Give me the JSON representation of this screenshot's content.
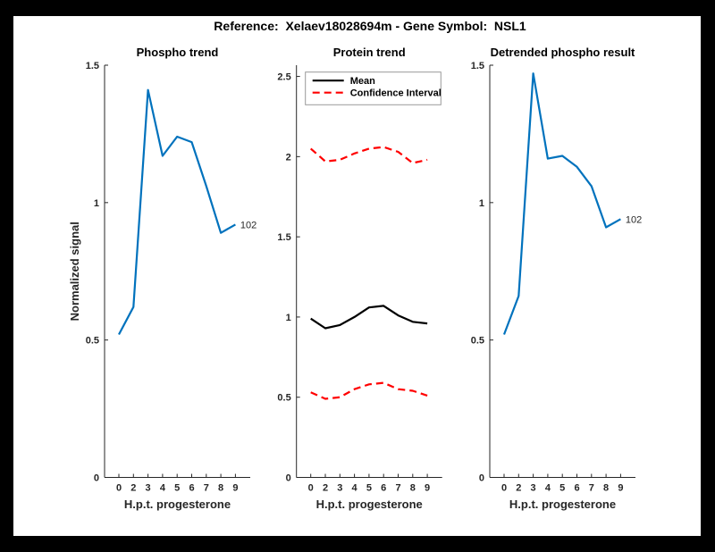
{
  "figure": {
    "title": "Reference:  Xelaev18028694m - Gene Symbol:  NSL1",
    "background_color": "#000000",
    "canvas_color": "#ffffff"
  },
  "colors": {
    "line_blue": "#0072BD",
    "line_black": "#000000",
    "line_red": "#FF0000",
    "axis": "#262626",
    "legend_border": "#999999"
  },
  "chart_data": [
    {
      "type": "line",
      "title": "Phospho trend",
      "xlabel": "H.p.t. progesterone",
      "ylabel": "Normalized signal",
      "x_tick_labels": [
        "0",
        "2",
        "3",
        "4",
        "5",
        "6",
        "7",
        "8",
        "9"
      ],
      "y_tick_labels": [
        "0",
        "0.5",
        "1",
        "1.5"
      ],
      "ylim": [
        0,
        1.5
      ],
      "grid": false,
      "series": [
        {
          "name": "phospho-signal",
          "color": "#0072BD",
          "style": "solid",
          "values": [
            0.52,
            0.62,
            1.41,
            1.17,
            1.24,
            1.22,
            1.06,
            0.89,
            0.92
          ]
        }
      ],
      "end_label": "102"
    },
    {
      "type": "line",
      "title": "Protein trend",
      "xlabel": "H.p.t. progesterone",
      "ylabel": "",
      "x_tick_labels": [
        "0",
        "2",
        "3",
        "4",
        "5",
        "6",
        "7",
        "8",
        "9"
      ],
      "y_tick_labels": [
        "0",
        "0.5",
        "1",
        "1.5",
        "2",
        "2.5"
      ],
      "ylim": [
        0,
        2.57
      ],
      "grid": false,
      "series": [
        {
          "name": "mean",
          "color": "#000000",
          "style": "solid",
          "values": [
            0.99,
            0.93,
            0.95,
            1.0,
            1.06,
            1.07,
            1.01,
            0.97,
            0.96
          ]
        },
        {
          "name": "confidence-interval-upper",
          "color": "#FF0000",
          "style": "dashed",
          "values": [
            2.05,
            1.97,
            1.98,
            2.02,
            2.05,
            2.06,
            2.03,
            1.96,
            1.98
          ]
        },
        {
          "name": "confidence-interval-lower",
          "color": "#FF0000",
          "style": "dashed",
          "values": [
            0.53,
            0.49,
            0.5,
            0.55,
            0.58,
            0.59,
            0.55,
            0.54,
            0.51
          ]
        }
      ],
      "legend": {
        "position": "northwest",
        "entries": [
          {
            "label": "Mean",
            "color": "#000000",
            "style": "solid"
          },
          {
            "label": "Confidence Interval",
            "color": "#FF0000",
            "style": "dashed"
          }
        ]
      }
    },
    {
      "type": "line",
      "title": "Detrended phospho result",
      "xlabel": "H.p.t. progesterone",
      "ylabel": "",
      "x_tick_labels": [
        "0",
        "2",
        "3",
        "4",
        "5",
        "6",
        "7",
        "8",
        "9"
      ],
      "y_tick_labels": [
        "0",
        "0.5",
        "1",
        "1.5"
      ],
      "ylim": [
        0,
        1.5
      ],
      "grid": false,
      "series": [
        {
          "name": "detrended-phospho-signal",
          "color": "#0072BD",
          "style": "solid",
          "values": [
            0.52,
            0.66,
            1.47,
            1.16,
            1.17,
            1.13,
            1.06,
            0.91,
            0.94
          ]
        }
      ],
      "end_label": "102"
    }
  ]
}
